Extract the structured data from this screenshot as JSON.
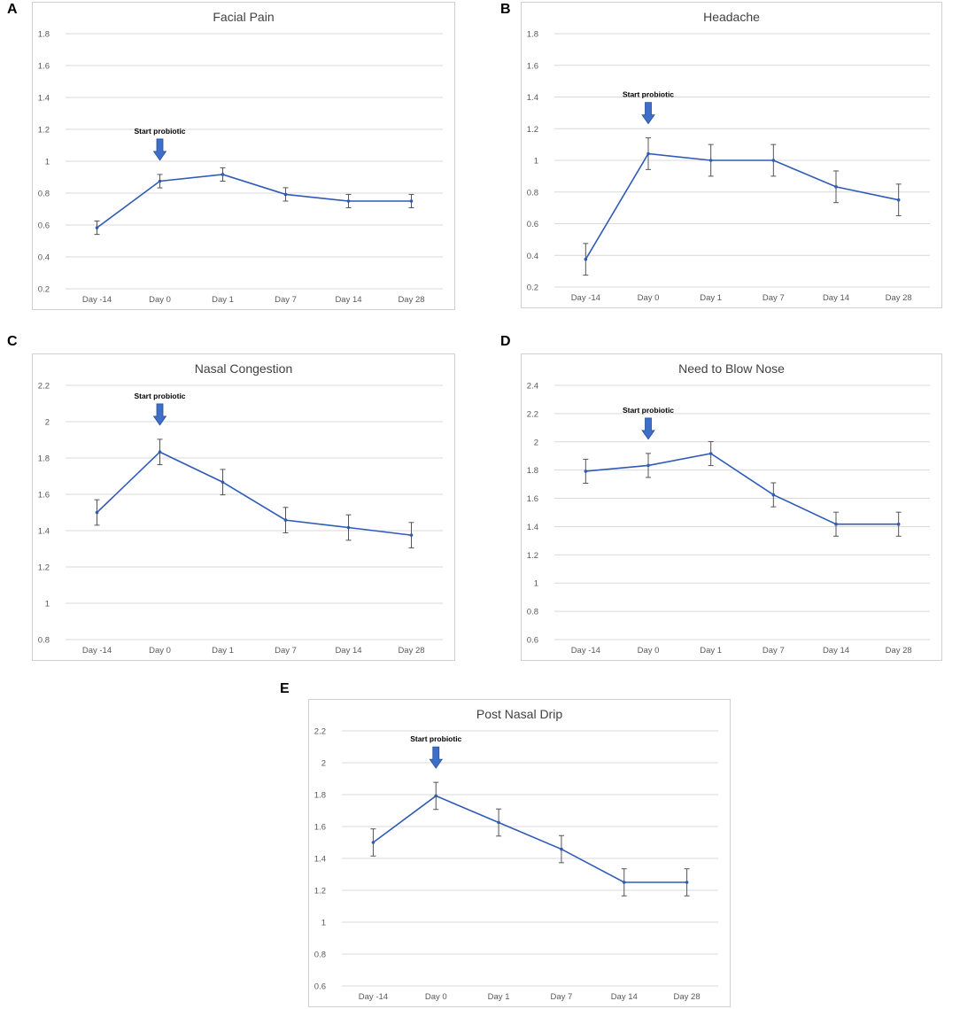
{
  "colors": {
    "line": "#2f5bb7",
    "grid": "#d9d9d9",
    "frame": "#d0d0d0",
    "errorbar": "#555555",
    "arrow": "#3d6fc8"
  },
  "chart_data": [
    {
      "panel": "A",
      "type": "line",
      "title": "Facial Pain",
      "categories": [
        "Day -14",
        "Day 0",
        "Day 1",
        "Day 7",
        "Day 14",
        "Day 28"
      ],
      "series": [
        {
          "name": "Facial Pain",
          "values": [
            0.583,
            0.875,
            0.917,
            0.792,
            0.75,
            0.75
          ],
          "errors": [
            0.042,
            0.042,
            0.042,
            0.042,
            0.042,
            0.042
          ]
        }
      ],
      "yticks": [
        0.2,
        0.4,
        0.6,
        0.8,
        1,
        1.2,
        1.4,
        1.6,
        1.8
      ],
      "ylim": [
        0.2,
        1.8
      ],
      "annotation": {
        "text": "Start probiotic",
        "category_index": 1
      },
      "xlabel": "",
      "ylabel": ""
    },
    {
      "panel": "B",
      "type": "line",
      "title": "Headache",
      "categories": [
        "Day -14",
        "Day 0",
        "Day 1",
        "Day 7",
        "Day 14",
        "Day 28"
      ],
      "series": [
        {
          "name": "Headache",
          "values": [
            0.375,
            1.042,
            1.0,
            1.0,
            0.833,
            0.75
          ],
          "errors": [
            0.1,
            0.1,
            0.1,
            0.1,
            0.1,
            0.1
          ]
        }
      ],
      "yticks": [
        0.2,
        0.4,
        0.6,
        0.8,
        1,
        1.2,
        1.4,
        1.6,
        1.8
      ],
      "ylim": [
        0.2,
        1.8
      ],
      "annotation": {
        "text": "Start probiotic",
        "category_index": 1
      },
      "xlabel": "",
      "ylabel": ""
    },
    {
      "panel": "C",
      "type": "line",
      "title": "Nasal Congestion",
      "categories": [
        "Day -14",
        "Day 0",
        "Day 1",
        "Day 7",
        "Day 14",
        "Day 28"
      ],
      "series": [
        {
          "name": "Nasal Congestion",
          "values": [
            1.5,
            1.833,
            1.667,
            1.458,
            1.417,
            1.375
          ],
          "errors": [
            0.07,
            0.07,
            0.07,
            0.07,
            0.07,
            0.07
          ]
        }
      ],
      "yticks": [
        0.8,
        1,
        1.2,
        1.4,
        1.6,
        1.8,
        2,
        2.2
      ],
      "ylim": [
        0.8,
        2.2
      ],
      "annotation": {
        "text": "Start probiotic",
        "category_index": 1
      },
      "xlabel": "",
      "ylabel": ""
    },
    {
      "panel": "D",
      "type": "line",
      "title": "Need to Blow Nose",
      "categories": [
        "Day -14",
        "Day 0",
        "Day 1",
        "Day 7",
        "Day 14",
        "Day 28"
      ],
      "series": [
        {
          "name": "Need to Blow Nose",
          "values": [
            1.792,
            1.833,
            1.917,
            1.625,
            1.417,
            1.417
          ],
          "errors": [
            0.085,
            0.085,
            0.085,
            0.085,
            0.085,
            0.085
          ]
        }
      ],
      "yticks": [
        0.6,
        0.8,
        1,
        1.2,
        1.4,
        1.6,
        1.8,
        2,
        2.2,
        2.4
      ],
      "ylim": [
        0.6,
        2.4
      ],
      "annotation": {
        "text": "Start probiotic",
        "category_index": 1
      },
      "xlabel": "",
      "ylabel": ""
    },
    {
      "panel": "E",
      "type": "line",
      "title": "Post Nasal Drip",
      "categories": [
        "Day -14",
        "Day 0",
        "Day 1",
        "Day 7",
        "Day 14",
        "Day 28"
      ],
      "series": [
        {
          "name": "Post Nasal Drip",
          "values": [
            1.5,
            1.792,
            1.625,
            1.458,
            1.25,
            1.25
          ],
          "errors": [
            0.085,
            0.085,
            0.085,
            0.085,
            0.085,
            0.085
          ]
        }
      ],
      "yticks": [
        0.6,
        0.8,
        1,
        1.2,
        1.4,
        1.6,
        1.8,
        2,
        2.2
      ],
      "ylim": [
        0.6,
        2.2
      ],
      "annotation": {
        "text": "Start probiotic",
        "category_index": 1
      },
      "xlabel": "",
      "ylabel": ""
    }
  ]
}
